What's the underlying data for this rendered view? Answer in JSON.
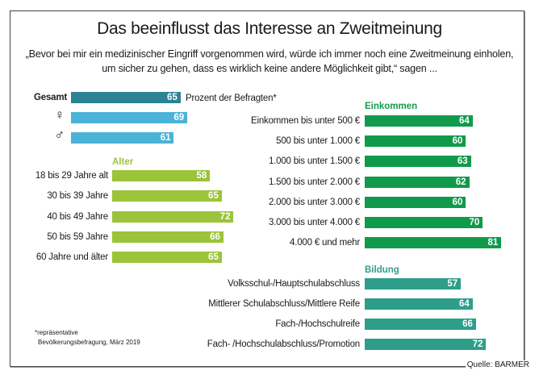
{
  "title": "Das beeinflusst das Interesse an Zweitmeinung",
  "subtitle": "„Bevor bei mir ein medizinischer Eingriff vorgenommen wird, würde ich immer noch eine Zweitmeinung einholen, um sicher zu gehen, dass es wirklich keine andere Möglichkeit gibt,“ sagen ...",
  "unit_label": "Prozent der Befragten*",
  "footnote": [
    "*repräsentative",
    "Bevölkerungsbefragung, März 2019"
  ],
  "source": "Quelle: BARMER",
  "chart_data": [
    {
      "type": "bar",
      "orientation": "horizontal",
      "title": "",
      "categories": [
        "Gesamt",
        "♀",
        "♂"
      ],
      "values": [
        65,
        69,
        61
      ],
      "colors": [
        "#2d8296",
        "#4bb2d8",
        "#4bb2d8"
      ]
    },
    {
      "type": "bar",
      "orientation": "horizontal",
      "title": "Alter",
      "categories": [
        "18 bis 29 Jahre alt",
        "30 bis 39 Jahre",
        "40 bis 49 Jahre",
        "50 bis 59 Jahre",
        "60 Jahre und älter"
      ],
      "values": [
        58,
        65,
        72,
        66,
        65
      ],
      "color": "#9bc43a"
    },
    {
      "type": "bar",
      "orientation": "horizontal",
      "title": "Einkommen",
      "categories": [
        "Einkommen bis unter 500 €",
        "500 bis unter 1.000 €",
        "1.000 bis unter 1.500 €",
        "1.500 bis unter 2.000 €",
        "2.000 bis unter 3.000 €",
        "3.000 bis unter 4.000 €",
        "4.000 € und mehr"
      ],
      "values": [
        64,
        60,
        63,
        62,
        60,
        70,
        81
      ],
      "color": "#109a4b"
    },
    {
      "type": "bar",
      "orientation": "horizontal",
      "title": "Bildung",
      "categories": [
        "Volksschul-/Hauptschulabschluss",
        "Mittlerer Schulabschluss/Mittlere Reife",
        "Fach-/Hochschulreife",
        "Fach- /Hochschulabschluss/Promotion"
      ],
      "values": [
        57,
        64,
        66,
        72
      ],
      "color": "#2e9e8b"
    }
  ]
}
